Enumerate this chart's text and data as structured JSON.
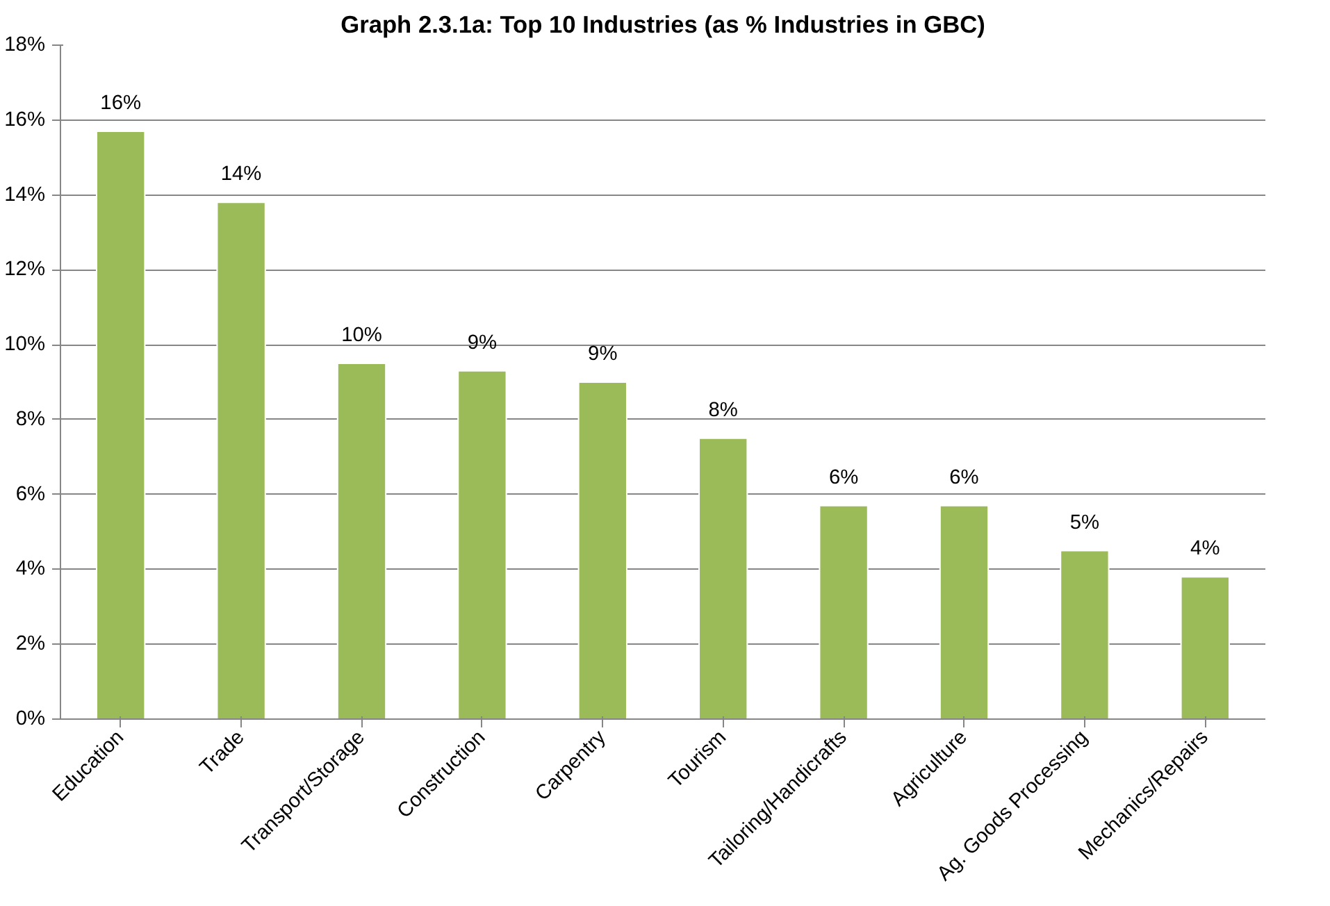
{
  "chart_data": {
    "type": "bar",
    "title": "Graph 2.3.1a: Top 10 Industries (as % Industries in GBC)",
    "categories": [
      "Education",
      "Trade",
      "Transport/Storage",
      "Construction",
      "Carpentry",
      "Tourism",
      "Tailoring/Handicrafts",
      "Agriculture",
      "Ag. Goods Processing",
      "Mechanics/Repairs"
    ],
    "values": [
      15.7,
      13.8,
      9.5,
      9.3,
      9.0,
      7.5,
      5.7,
      5.7,
      4.5,
      3.8
    ],
    "value_labels": [
      "16%",
      "14%",
      "10%",
      "9%",
      "9%",
      "8%",
      "6%",
      "6%",
      "5%",
      "4%"
    ],
    "color": "#9bbb59",
    "ylim": [
      0,
      18
    ],
    "yticks": [
      {
        "value": 0,
        "label": "0%"
      },
      {
        "value": 2,
        "label": "2%"
      },
      {
        "value": 4,
        "label": "4%"
      },
      {
        "value": 6,
        "label": "6%"
      },
      {
        "value": 8,
        "label": "8%"
      },
      {
        "value": 10,
        "label": "10%"
      },
      {
        "value": 12,
        "label": "12%"
      },
      {
        "value": 14,
        "label": "14%"
      },
      {
        "value": 16,
        "label": "16%"
      },
      {
        "value": 18,
        "label": "18%"
      }
    ],
    "grid": "y"
  }
}
